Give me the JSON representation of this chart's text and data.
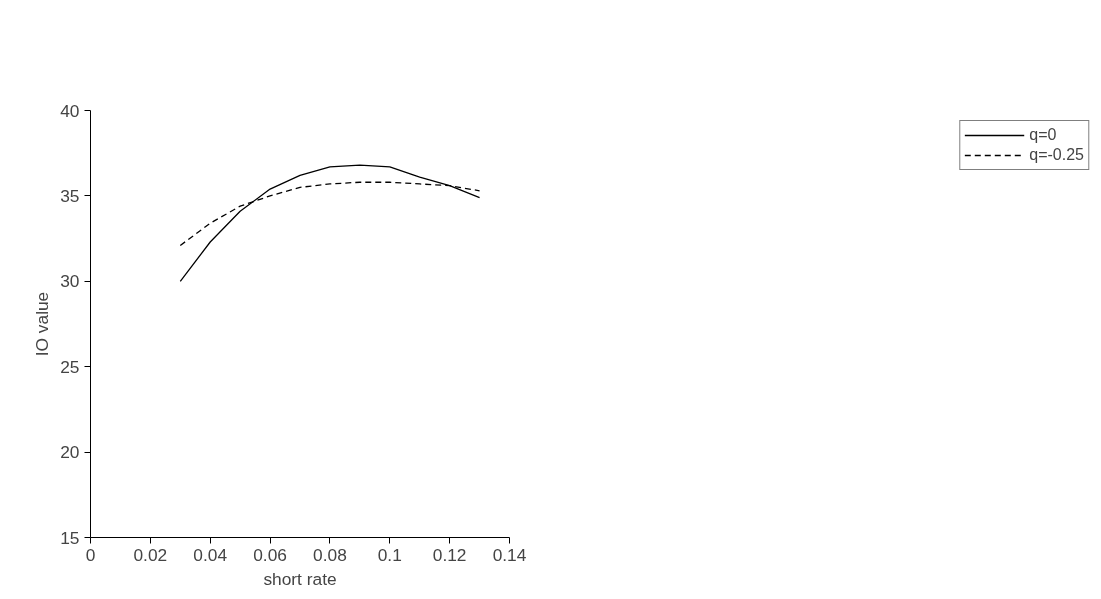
{
  "chart_data": {
    "type": "line",
    "xlabel": "short rate",
    "ylabel": "IO value",
    "x": [
      0.03,
      0.04,
      0.05,
      0.06,
      0.07,
      0.08,
      0.09,
      0.1,
      0.11,
      0.12,
      0.13
    ],
    "series": [
      {
        "name": "q=0",
        "color": "#000000",
        "line_style": "solid",
        "values": [
          30.0,
          32.3,
          34.1,
          35.4,
          36.2,
          36.7,
          36.8,
          36.7,
          36.1,
          35.6,
          34.9
        ]
      },
      {
        "name": "q=-0.25",
        "color": "#000000",
        "line_style": "dashed",
        "values": [
          32.1,
          33.4,
          34.4,
          35.0,
          35.5,
          35.7,
          35.8,
          35.8,
          35.7,
          35.6,
          35.3
        ]
      }
    ],
    "xlim": [
      0,
      0.14
    ],
    "xticks": [
      0,
      0.02,
      0.04,
      0.06,
      0.08,
      0.1,
      0.12,
      0.14
    ],
    "ylim": [
      15,
      40
    ],
    "yticks": [
      15,
      20,
      25,
      30,
      35,
      40
    ],
    "grid": false,
    "legend": "right",
    "marker": "none"
  }
}
